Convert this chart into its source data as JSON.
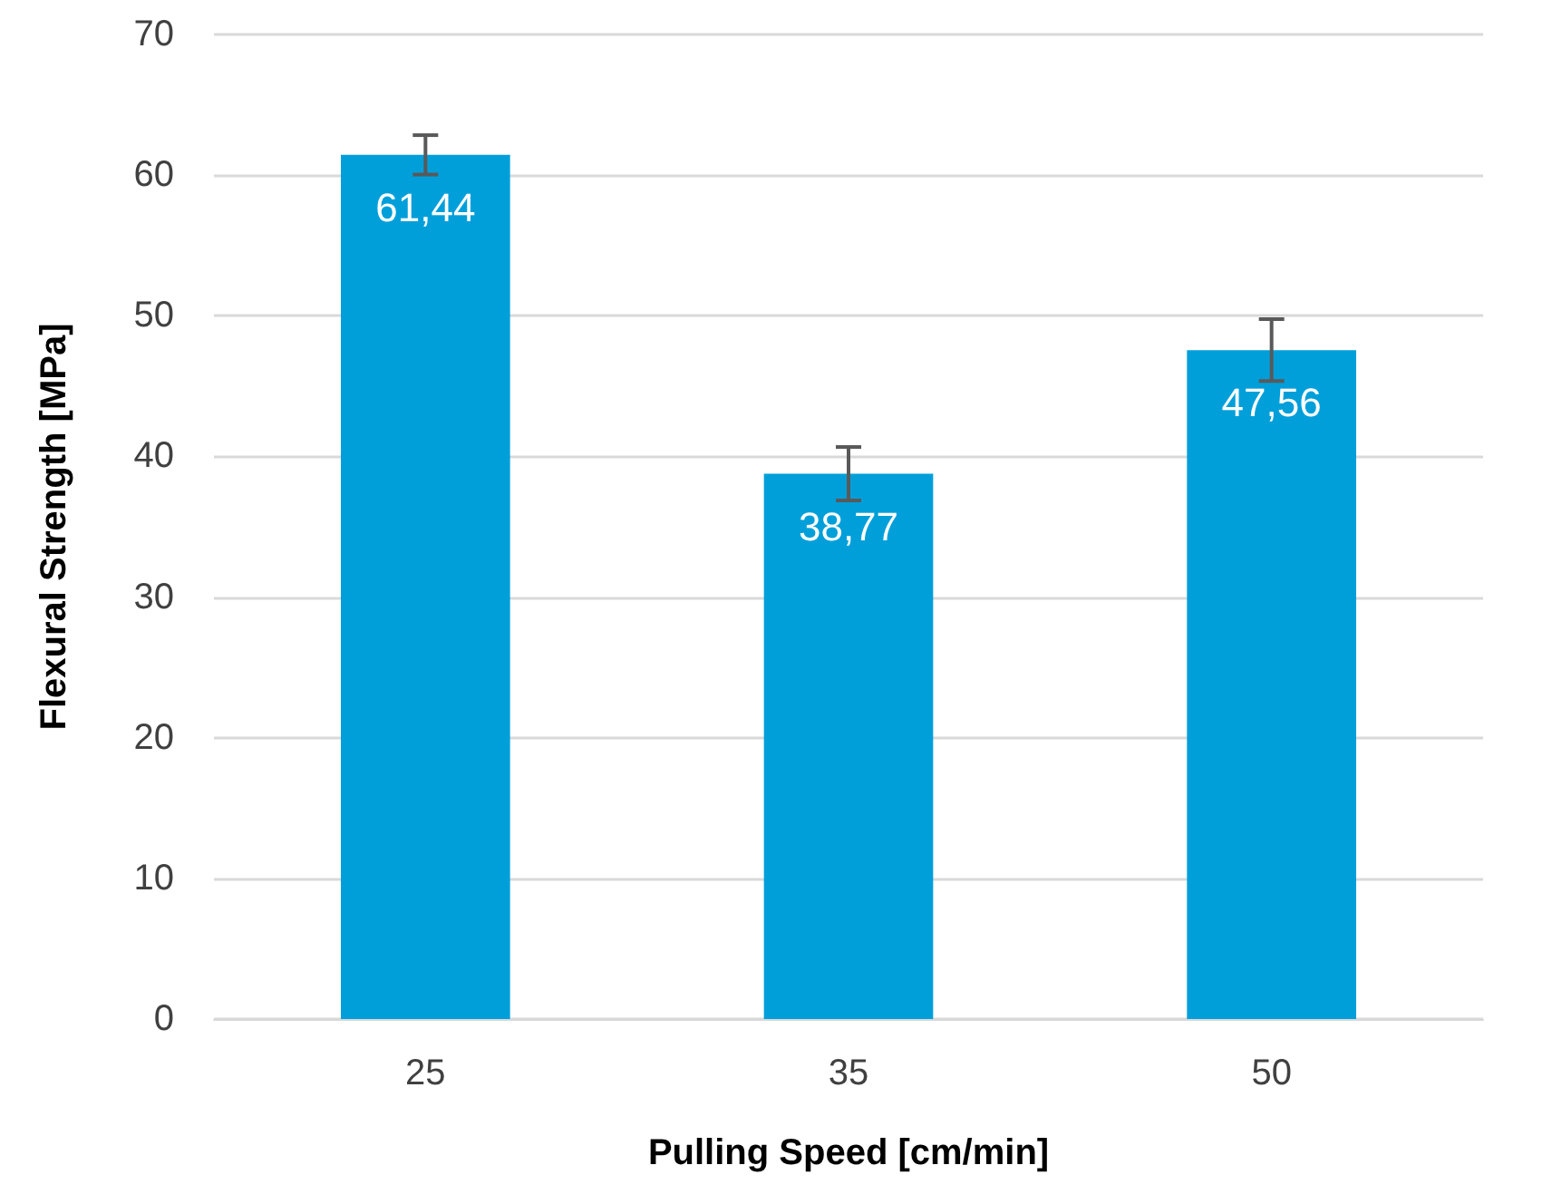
{
  "chart_data": {
    "type": "bar",
    "xlabel": "Pulling Speed [cm/min]",
    "ylabel": "Flexural Strength [MPa]",
    "categories": [
      "25",
      "35",
      "50"
    ],
    "values": [
      61.44,
      38.77,
      47.56
    ],
    "value_labels": [
      "61,44",
      "38,77",
      "47,56"
    ],
    "errors": [
      1.4,
      1.9,
      2.2
    ],
    "color": "#009fda",
    "ylim": [
      0,
      70
    ],
    "yticks": [
      0,
      10,
      20,
      30,
      40,
      50,
      60,
      70
    ],
    "grid": "y"
  }
}
